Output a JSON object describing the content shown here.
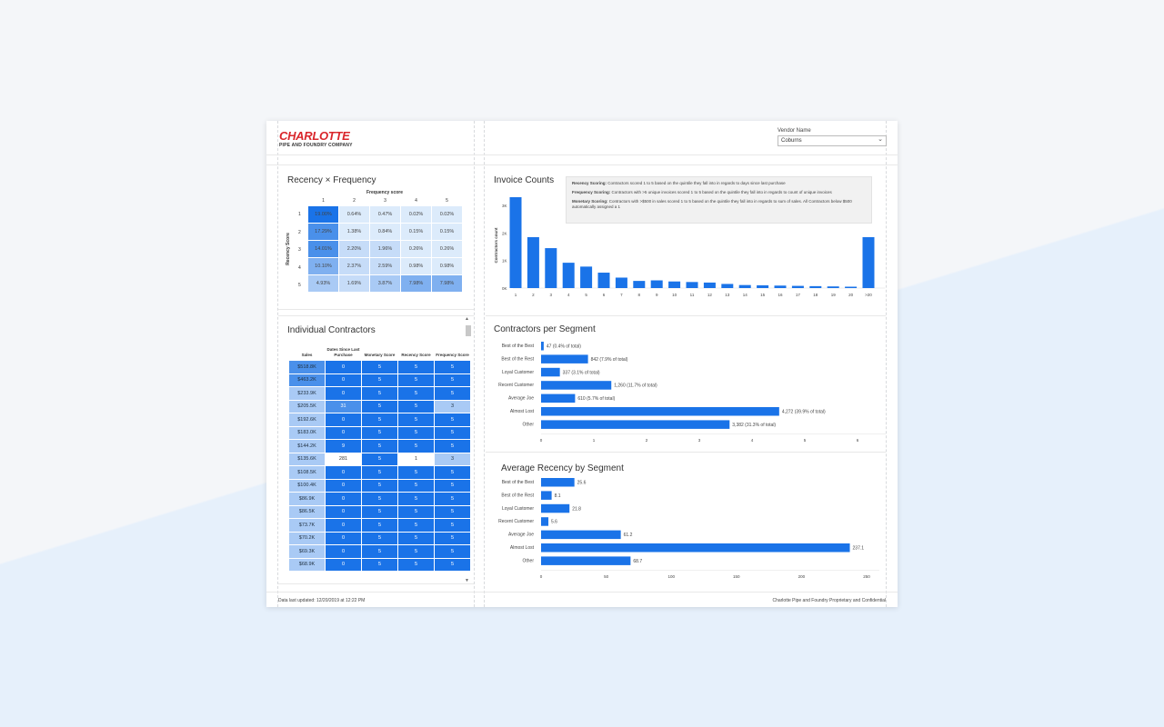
{
  "header": {
    "logo_line1": "CHARLOTTE",
    "logo_line2": "PIPE AND FOUNDRY COMPANY",
    "vendor_label": "Vendor Name",
    "vendor_value": "Coburns"
  },
  "rf": {
    "title": "Recency × Frequency",
    "freq_label": "Frequency score",
    "recency_label": "Recency Score",
    "cols": [
      "1",
      "2",
      "3",
      "4",
      "5"
    ],
    "rows": [
      {
        "label": "1",
        "cells": [
          "19.00%",
          "0.64%",
          "0.47%",
          "0.02%",
          "0.02%"
        ]
      },
      {
        "label": "2",
        "cells": [
          "17.29%",
          "1.38%",
          "0.84%",
          "0.15%",
          "0.15%"
        ]
      },
      {
        "label": "3",
        "cells": [
          "14.01%",
          "2.20%",
          "1.96%",
          "0.26%",
          "0.26%"
        ]
      },
      {
        "label": "4",
        "cells": [
          "10.10%",
          "2.37%",
          "2.59%",
          "0.98%",
          "0.98%"
        ]
      },
      {
        "label": "5",
        "cells": [
          "4.93%",
          "1.69%",
          "3.87%",
          "7.98%",
          "7.98%"
        ]
      }
    ]
  },
  "contractors": {
    "title": "Individual Contractors",
    "headers": [
      "Sales",
      "Dates Since Last Purchase",
      "Monetary Score",
      "Recency Score",
      "Frequency Score"
    ],
    "rows": [
      [
        "$518.8K",
        "0",
        "5",
        "5",
        "5"
      ],
      [
        "$463.2K",
        "0",
        "5",
        "5",
        "5"
      ],
      [
        "$233.9K",
        "0",
        "5",
        "5",
        "5"
      ],
      [
        "$205.5K",
        "31",
        "5",
        "5",
        "3"
      ],
      [
        "$192.6K",
        "0",
        "5",
        "5",
        "5"
      ],
      [
        "$183.0K",
        "0",
        "5",
        "5",
        "5"
      ],
      [
        "$144.2K",
        "9",
        "5",
        "5",
        "5"
      ],
      [
        "$135.6K",
        "281",
        "5",
        "1",
        "3"
      ],
      [
        "$108.5K",
        "0",
        "5",
        "5",
        "5"
      ],
      [
        "$100.4K",
        "0",
        "5",
        "5",
        "5"
      ],
      [
        "$86.9K",
        "0",
        "5",
        "5",
        "5"
      ],
      [
        "$86.5K",
        "0",
        "5",
        "5",
        "5"
      ],
      [
        "$73.7K",
        "0",
        "5",
        "5",
        "5"
      ],
      [
        "$70.2K",
        "0",
        "5",
        "5",
        "5"
      ],
      [
        "$69.3K",
        "0",
        "5",
        "5",
        "5"
      ],
      [
        "$68.9K",
        "0",
        "5",
        "5",
        "5"
      ]
    ]
  },
  "invoice": {
    "title": "Invoice Counts",
    "notes": [
      {
        "bold": "Recency Scoring:",
        "text": " Contractors scored 1 to 5 based on the quintile they fall into in regards to days since last purchase"
      },
      {
        "bold": "Frequency Scoring:",
        "text": " Contractors with >5 unique invoices scored 1 to 5 based on the quintile they fall into in regards to count of unique invoices"
      },
      {
        "bold": "Monetary Scoring:",
        "text": " Contractors with >$500 in sales scored 1 to 5 based on the quintile they fall into in regards to sum of sales. All Contractors below $500 automatically assigned a 1"
      }
    ]
  },
  "segments": {
    "title": "Contractors per Segment"
  },
  "recency": {
    "title": "Average Recency by Segment"
  },
  "footer": {
    "left": "Data last updated: 12/20/2019 at 12:22 PM",
    "right": "Charlotte Pipe and Foundry Proprietary and Confidential"
  },
  "colors": {
    "bar": "#1a73e8",
    "accent_red": "#d9262b"
  },
  "chart_data": [
    {
      "type": "bar",
      "title": "Invoice Counts",
      "ylabel": "Contractors count",
      "categories": [
        "1",
        "2",
        "3",
        "4",
        "5",
        "6",
        "7",
        "8",
        "9",
        "10",
        "11",
        "12",
        "13",
        "14",
        "15",
        "16",
        "17",
        "18",
        "19",
        "20",
        ">20"
      ],
      "values": [
        3300,
        1850,
        1450,
        920,
        780,
        560,
        380,
        260,
        280,
        240,
        220,
        200,
        150,
        110,
        100,
        90,
        80,
        70,
        60,
        50,
        1850
      ],
      "ylim": [
        0,
        3300
      ],
      "yticks": [
        "0K",
        "1K",
        "2K",
        "3K"
      ]
    },
    {
      "type": "bar",
      "orientation": "horizontal",
      "title": "Contractors per Segment",
      "categories": [
        "Best of the Best",
        "Best of the Rest",
        "Loyal Customer",
        "Recent Customer",
        "Average Joe",
        "Almost Lost",
        "Other"
      ],
      "values": [
        47,
        842,
        337,
        1260,
        610,
        4272,
        3382
      ],
      "labels": [
        "47 (0.4% of total)",
        "842 (7.9% of total)",
        "337 (3.1% of total)",
        "1,260 (11.7% of total)",
        "610 (5.7% of total)",
        "4,272 (39.9% of total)",
        "3,382 (31.3% of total)"
      ],
      "xticks": [
        "0",
        "1",
        "2",
        "3",
        "4",
        "5",
        "6"
      ],
      "xlim": [
        0,
        6200
      ]
    },
    {
      "type": "bar",
      "orientation": "horizontal",
      "title": "Average Recency by Segment",
      "categories": [
        "Best of the Best",
        "Best of the Rest",
        "Loyal Customer",
        "Recent Customer",
        "Average Joe",
        "Almost Lost",
        "Other"
      ],
      "values": [
        25.6,
        8.1,
        21.8,
        5.6,
        61.2,
        237.1,
        68.7
      ],
      "labels": [
        "25.6",
        "8.1",
        "21.8",
        "5.6",
        "61.2",
        "237.1",
        "68.7"
      ],
      "xticks": [
        "0",
        "50",
        "100",
        "150",
        "200",
        "250"
      ],
      "xlim": [
        0,
        250
      ]
    }
  ]
}
